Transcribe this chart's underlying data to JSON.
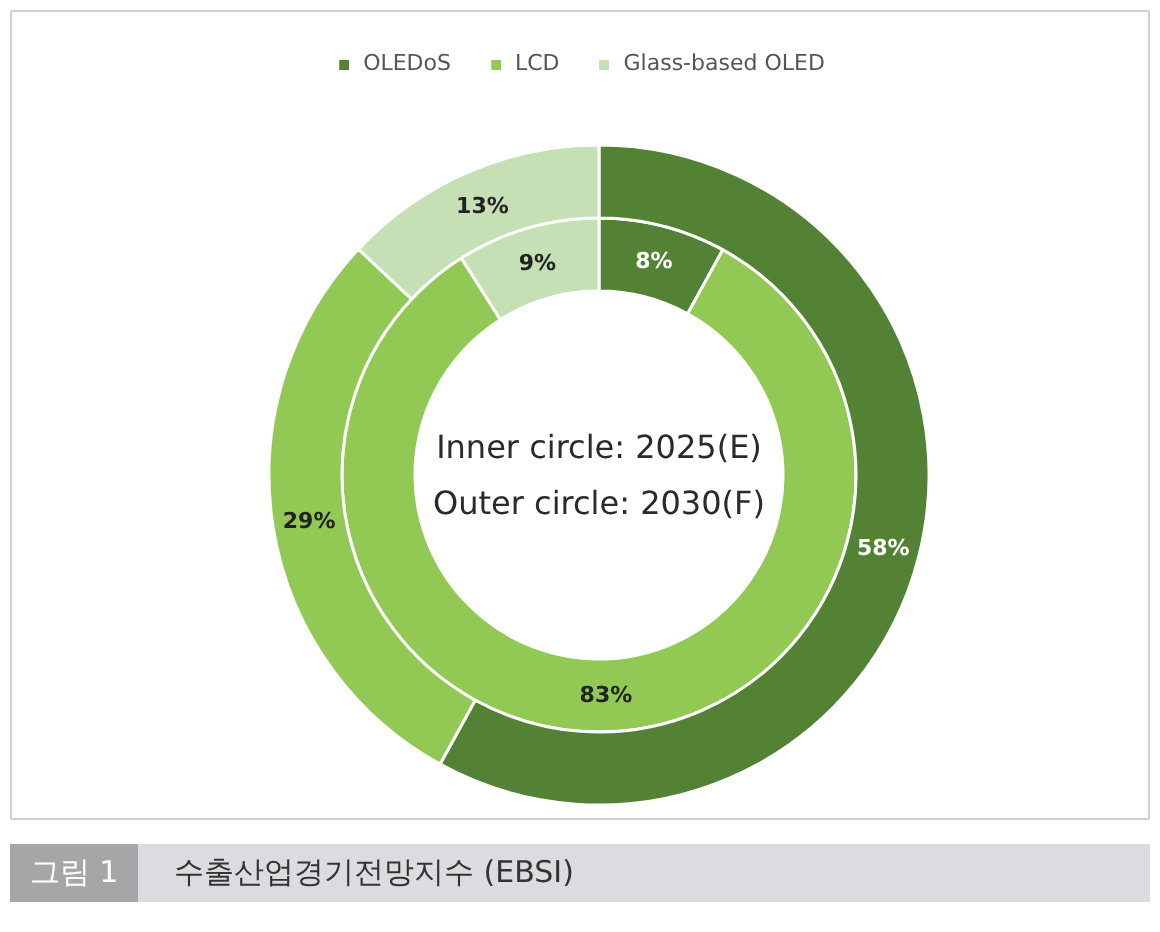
{
  "chart_data": {
    "type": "donut",
    "categories": [
      "OLEDoS",
      "LCD",
      "Glass-based OLED"
    ],
    "colors": [
      "#548235",
      "#92c954",
      "#c5e0b4"
    ],
    "series": [
      {
        "values": [
          8,
          83,
          9
        ],
        "value_labels": [
          "8%",
          "83%",
          "9%"
        ]
      },
      {
        "values": [
          58,
          29,
          13
        ],
        "value_labels": [
          "58%",
          "29%",
          "13%"
        ]
      }
    ],
    "legend": "top",
    "annotations": [
      "Inner circle: 2025(E)",
      "Outer circle: 2030(F)",
      "그림 1",
      "수출산업경기전망지수 (EBSI)"
    ]
  }
}
